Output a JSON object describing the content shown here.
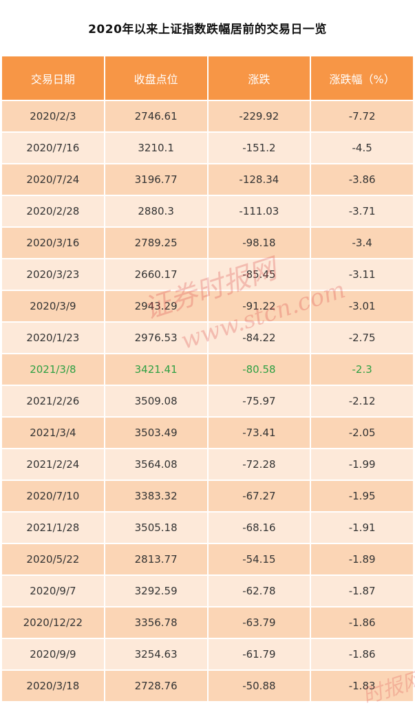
{
  "title": "2020年以来上证指数跌幅居前的交易日一览",
  "columns": [
    "交易日期",
    "收盘点位",
    "涨跌",
    "涨跌幅（%）"
  ],
  "rows": [
    {
      "date": "2020/2/3",
      "close": "2746.61",
      "change": "-229.92",
      "pct": "-7.72"
    },
    {
      "date": "2020/7/16",
      "close": "3210.1",
      "change": "-151.2",
      "pct": "-4.5"
    },
    {
      "date": "2020/7/24",
      "close": "3196.77",
      "change": "-128.34",
      "pct": "-3.86"
    },
    {
      "date": "2020/2/28",
      "close": "2880.3",
      "change": "-111.03",
      "pct": "-3.71"
    },
    {
      "date": "2020/3/16",
      "close": "2789.25",
      "change": "-98.18",
      "pct": "-3.4"
    },
    {
      "date": "2020/3/23",
      "close": "2660.17",
      "change": "-85.45",
      "pct": "-3.11"
    },
    {
      "date": "2020/3/9",
      "close": "2943.29",
      "change": "-91.22",
      "pct": "-3.01"
    },
    {
      "date": "2020/1/23",
      "close": "2976.53",
      "change": "-84.22",
      "pct": "-2.75"
    },
    {
      "date": "2021/3/8",
      "close": "3421.41",
      "change": "-80.58",
      "pct": "-2.3"
    },
    {
      "date": "2021/2/26",
      "close": "3509.08",
      "change": "-75.97",
      "pct": "-2.12"
    },
    {
      "date": "2021/3/4",
      "close": "3503.49",
      "change": "-73.41",
      "pct": "-2.05"
    },
    {
      "date": "2021/2/24",
      "close": "3564.08",
      "change": "-72.28",
      "pct": "-1.99"
    },
    {
      "date": "2020/7/10",
      "close": "3383.32",
      "change": "-67.27",
      "pct": "-1.95"
    },
    {
      "date": "2021/1/28",
      "close": "3505.18",
      "change": "-68.16",
      "pct": "-1.91"
    },
    {
      "date": "2020/5/22",
      "close": "2813.77",
      "change": "-54.15",
      "pct": "-1.89"
    },
    {
      "date": "2020/9/7",
      "close": "3292.59",
      "change": "-62.78",
      "pct": "-1.87"
    },
    {
      "date": "2020/12/22",
      "close": "3356.78",
      "change": "-63.79",
      "pct": "-1.86"
    },
    {
      "date": "2020/9/9",
      "close": "3254.63",
      "change": "-61.79",
      "pct": "-1.86"
    },
    {
      "date": "2020/3/18",
      "close": "2728.76",
      "change": "-50.88",
      "pct": "-1.83"
    }
  ],
  "highlight_row_index": 8,
  "colors": {
    "header": "#f79646",
    "row_dark": "#fbd5b5",
    "row_light": "#fde9d9",
    "highlight_text": "#2ea043"
  },
  "watermark": {
    "text_main": "证券时报网",
    "text_sub": "www.stcn.com",
    "text_corner": "时报网"
  }
}
